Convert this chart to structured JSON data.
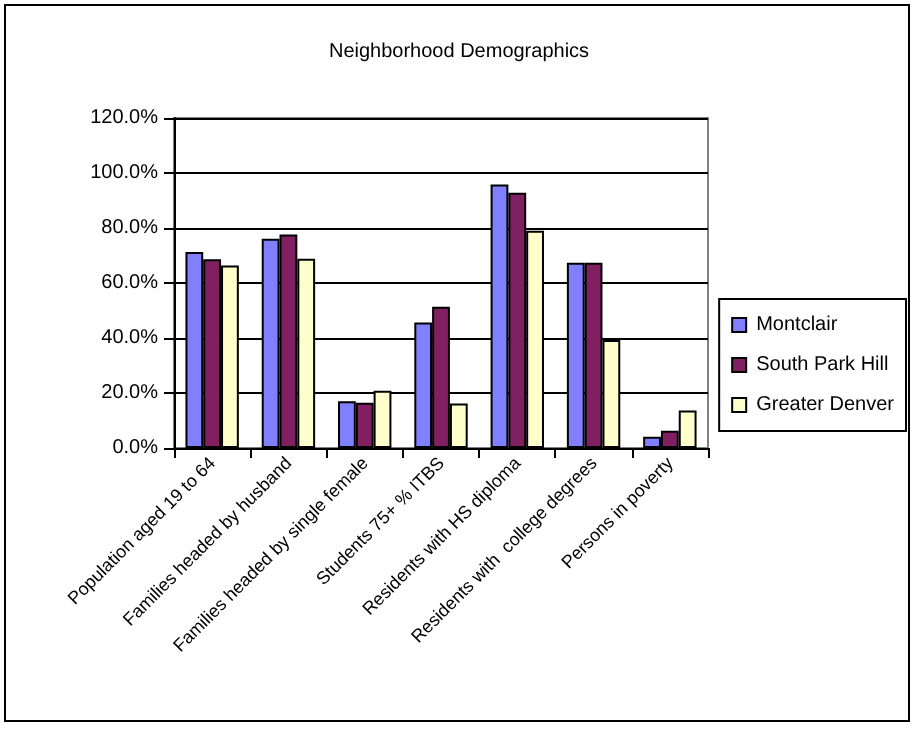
{
  "chart_data": {
    "type": "bar",
    "title": "Neighborhood Demographics",
    "categories": [
      "Population aged 19 to 64",
      "Families headed by husband",
      "Families headed by single female",
      "Students 75+ % ITBS",
      "Residents with HS diploma",
      "Residents with  college degrees",
      "Persons in poverty"
    ],
    "series": [
      {
        "name": "Montclair",
        "color": "#8080ff",
        "values": [
          71.3,
          76.1,
          17,
          45.6,
          95.8,
          67.4,
          4.1
        ]
      },
      {
        "name": "South Park Hill",
        "color": "#802060",
        "values": [
          68.6,
          77.6,
          16.5,
          51.4,
          92.8,
          67.4,
          6.3
        ]
      },
      {
        "name": "Greater Denver",
        "color": "#ffffcc",
        "values": [
          66.4,
          68.8,
          20.8,
          16.2,
          79,
          39.3,
          13.6
        ]
      }
    ],
    "ylim": [
      0,
      120
    ],
    "yticks": [
      {
        "value": 0,
        "label": "0.0%"
      },
      {
        "value": 20,
        "label": "20.0%"
      },
      {
        "value": 40,
        "label": "40.0%"
      },
      {
        "value": 60,
        "label": "60.0%"
      },
      {
        "value": 80,
        "label": "80.0%"
      },
      {
        "value": 100,
        "label": "100.0%"
      },
      {
        "value": 120,
        "label": "120.0%"
      }
    ],
    "grid": "y",
    "legend": "right"
  }
}
